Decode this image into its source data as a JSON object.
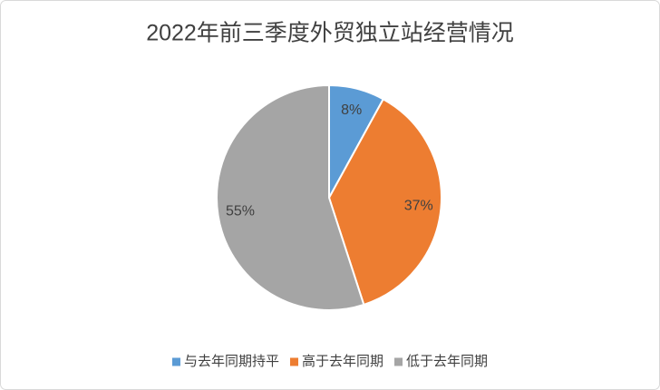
{
  "chart_data": {
    "type": "pie",
    "title": "2022年前三季度外贸独立站经营情况",
    "categories": [
      "与去年同期持平",
      "高于去年同期",
      "低于去年同期"
    ],
    "values": [
      8,
      37,
      55
    ],
    "value_labels": [
      "8%",
      "37%",
      "55%"
    ],
    "colors": [
      "#5b9bd5",
      "#ed7d31",
      "#a5a5a5"
    ],
    "legend": "bottom"
  }
}
